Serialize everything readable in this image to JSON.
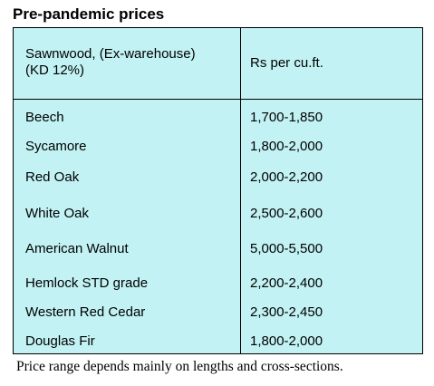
{
  "title": "Pre-pandemic prices",
  "table": {
    "header": {
      "col1_line1": "Sawnwood, (Ex-warehouse)",
      "col1_line2": "(KD 12%)",
      "col2": "Rs per cu.ft."
    },
    "rows": [
      {
        "name": "Beech",
        "price": "1,700-1,850"
      },
      {
        "name": "Sycamore",
        "price": "1,800-2,000"
      },
      {
        "name": "Red Oak",
        "price": "2,000-2,200"
      },
      {
        "name": "White Oak",
        "price": "2,500-2,600"
      },
      {
        "name": "American Walnut",
        "price": "5,000-5,500"
      },
      {
        "name": "Hemlock STD grade",
        "price": "2,200-2,400"
      },
      {
        "name": "Western Red Cedar",
        "price": "2,300-2,450"
      },
      {
        "name": "Douglas Fir",
        "price": "1,800-2,000"
      }
    ]
  },
  "footnote": "Price range depends mainly on lengths and cross-sections."
}
